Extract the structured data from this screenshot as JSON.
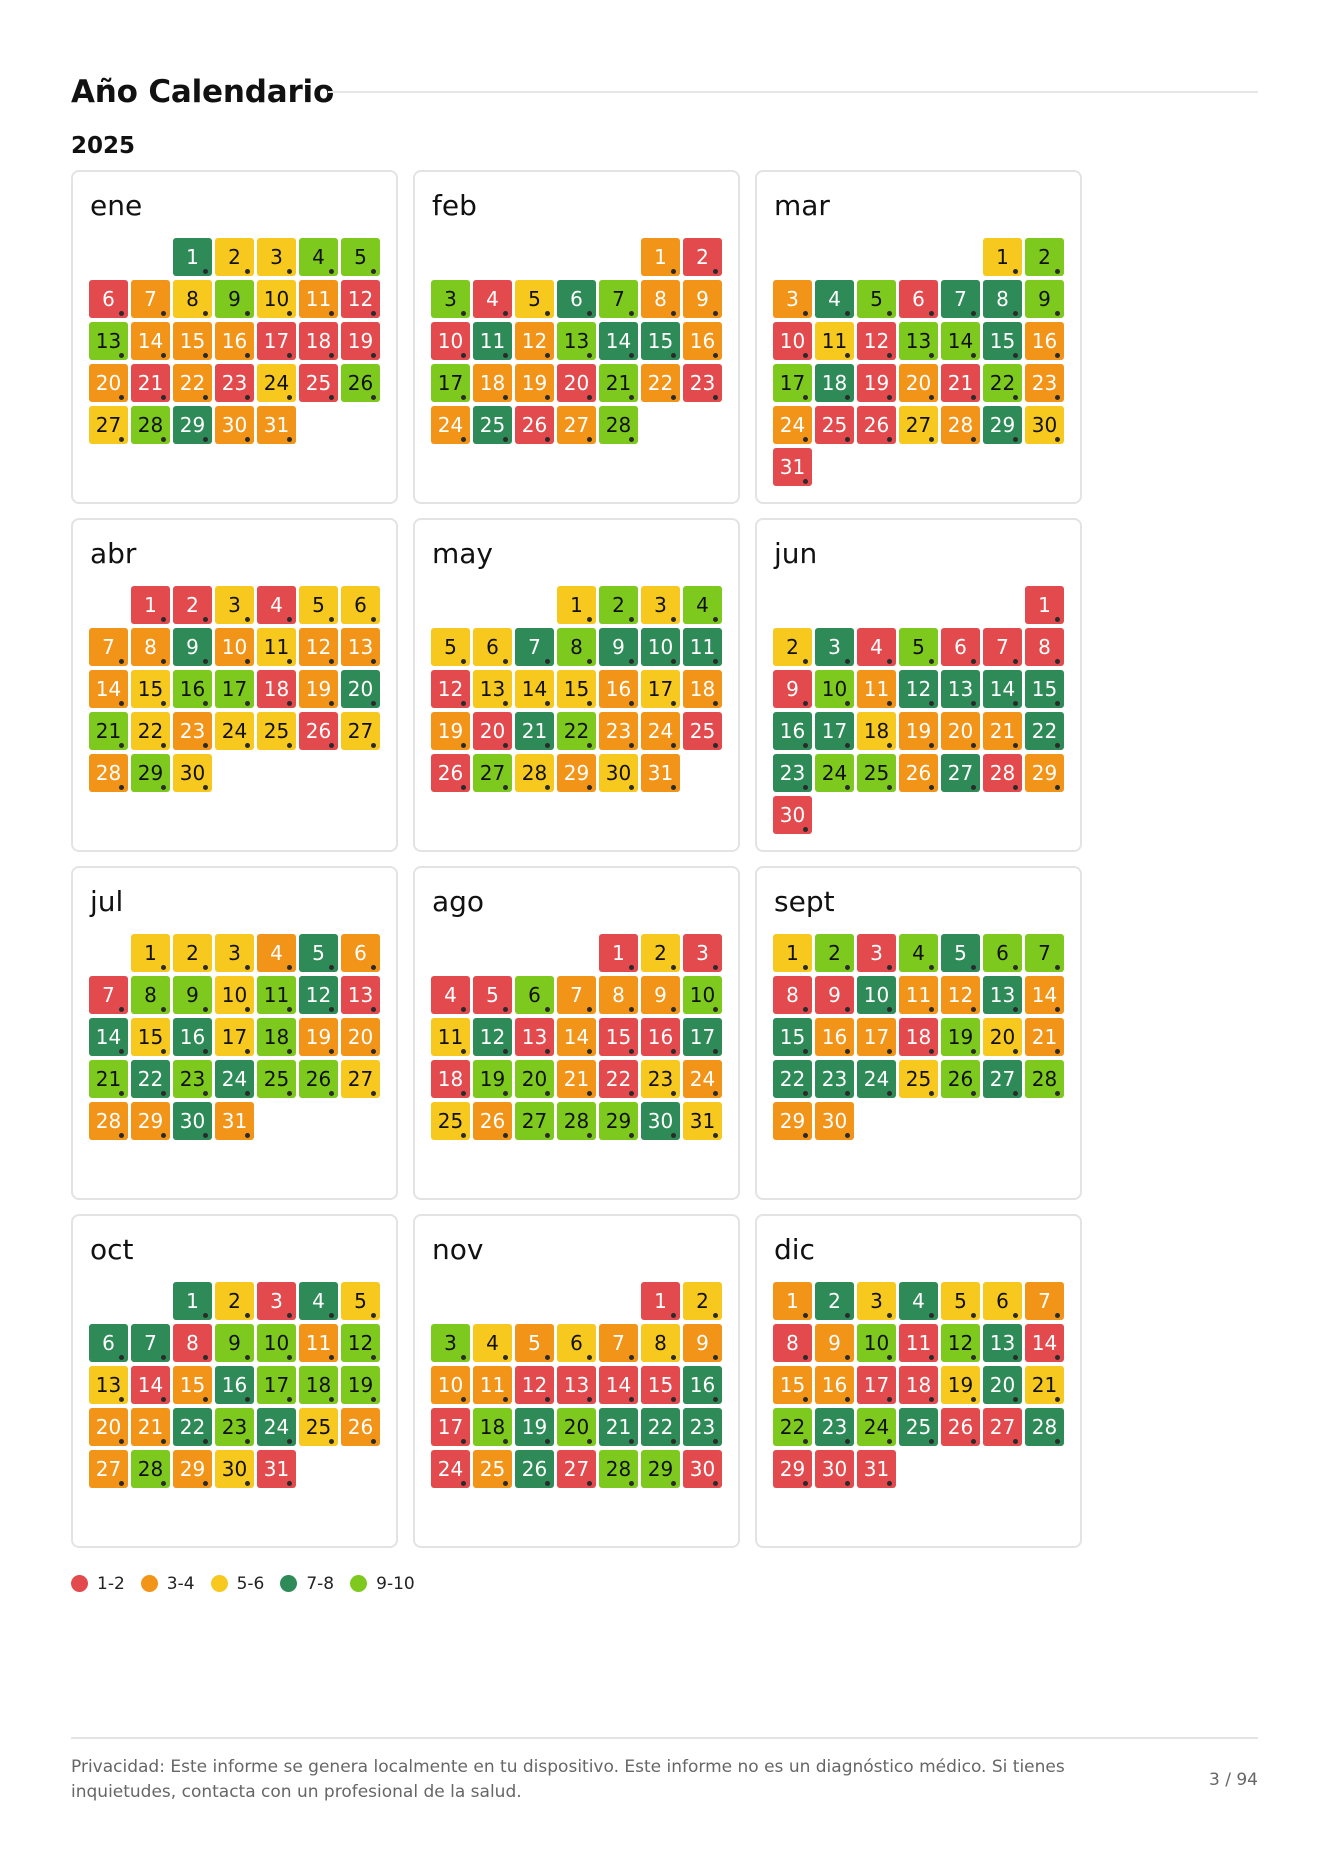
{
  "header": {
    "title": "Año Calendario",
    "year": "2025"
  },
  "colors": {
    "1-2": "#e24a4e",
    "3-4": "#f29418",
    "5-6": "#f7c91f",
    "7-8": "#2e8b57",
    "9-10": "#7ec91e"
  },
  "text_colors": {
    "1-2": "#ffffff",
    "3-4": "#ffffff",
    "5-6": "#111111",
    "7-8": "#ffffff",
    "9-10": "#111111"
  },
  "months": [
    {
      "name": "ene",
      "days": [
        "7-8",
        "5-6",
        "5-6",
        "9-10",
        "9-10",
        "1-2",
        "3-4",
        "5-6",
        "9-10",
        "5-6",
        "3-4",
        "1-2",
        "9-10",
        "3-4",
        "3-4",
        "3-4",
        "1-2",
        "1-2",
        "1-2",
        "3-4",
        "1-2",
        "3-4",
        "1-2",
        "5-6",
        "1-2",
        "9-10",
        "5-6",
        "9-10",
        "7-8",
        "3-4",
        "3-4"
      ]
    },
    {
      "name": "feb",
      "days": [
        "3-4",
        "1-2",
        "9-10",
        "1-2",
        "5-6",
        "7-8",
        "9-10",
        "3-4",
        "3-4",
        "1-2",
        "7-8",
        "3-4",
        "9-10",
        "7-8",
        "7-8",
        "3-4",
        "9-10",
        "3-4",
        "3-4",
        "1-2",
        "9-10",
        "3-4",
        "1-2",
        "3-4",
        "7-8",
        "1-2",
        "3-4",
        "9-10"
      ]
    },
    {
      "name": "mar",
      "days": [
        "5-6",
        "9-10",
        "3-4",
        "7-8",
        "9-10",
        "1-2",
        "7-8",
        "7-8",
        "9-10",
        "1-2",
        "5-6",
        "1-2",
        "9-10",
        "9-10",
        "7-8",
        "3-4",
        "9-10",
        "7-8",
        "1-2",
        "3-4",
        "1-2",
        "9-10",
        "3-4",
        "3-4",
        "1-2",
        "1-2",
        "5-6",
        "3-4",
        "7-8",
        "5-6",
        "1-2"
      ]
    },
    {
      "name": "abr",
      "days": [
        "1-2",
        "1-2",
        "5-6",
        "1-2",
        "5-6",
        "5-6",
        "3-4",
        "3-4",
        "7-8",
        "3-4",
        "5-6",
        "3-4",
        "3-4",
        "3-4",
        "5-6",
        "9-10",
        "9-10",
        "1-2",
        "3-4",
        "7-8",
        "9-10",
        "5-6",
        "3-4",
        "5-6",
        "5-6",
        "1-2",
        "5-6",
        "3-4",
        "9-10",
        "5-6"
      ]
    },
    {
      "name": "may",
      "days": [
        "5-6",
        "9-10",
        "5-6",
        "9-10",
        "5-6",
        "5-6",
        "7-8",
        "9-10",
        "7-8",
        "7-8",
        "7-8",
        "1-2",
        "5-6",
        "5-6",
        "5-6",
        "3-4",
        "5-6",
        "3-4",
        "3-4",
        "1-2",
        "7-8",
        "9-10",
        "3-4",
        "3-4",
        "1-2",
        "1-2",
        "9-10",
        "5-6",
        "3-4",
        "5-6",
        "3-4"
      ]
    },
    {
      "name": "jun",
      "days": [
        "1-2",
        "5-6",
        "7-8",
        "1-2",
        "9-10",
        "1-2",
        "1-2",
        "1-2",
        "1-2",
        "9-10",
        "3-4",
        "7-8",
        "7-8",
        "7-8",
        "7-8",
        "7-8",
        "7-8",
        "5-6",
        "3-4",
        "3-4",
        "3-4",
        "7-8",
        "7-8",
        "9-10",
        "9-10",
        "3-4",
        "7-8",
        "1-2",
        "3-4",
        "1-2"
      ]
    },
    {
      "name": "jul",
      "days": [
        "5-6",
        "5-6",
        "5-6",
        "3-4",
        "7-8",
        "3-4",
        "1-2",
        "9-10",
        "9-10",
        "5-6",
        "9-10",
        "7-8",
        "1-2",
        "7-8",
        "5-6",
        "7-8",
        "5-6",
        "9-10",
        "3-4",
        "3-4",
        "9-10",
        "7-8",
        "9-10",
        "7-8",
        "9-10",
        "9-10",
        "5-6",
        "3-4",
        "3-4",
        "7-8",
        "3-4"
      ]
    },
    {
      "name": "ago",
      "days": [
        "1-2",
        "5-6",
        "1-2",
        "1-2",
        "1-2",
        "9-10",
        "3-4",
        "3-4",
        "3-4",
        "9-10",
        "5-6",
        "7-8",
        "1-2",
        "3-4",
        "1-2",
        "1-2",
        "7-8",
        "1-2",
        "9-10",
        "9-10",
        "3-4",
        "1-2",
        "5-6",
        "3-4",
        "5-6",
        "3-4",
        "9-10",
        "9-10",
        "9-10",
        "7-8",
        "5-6"
      ]
    },
    {
      "name": "sept",
      "days": [
        "5-6",
        "9-10",
        "1-2",
        "9-10",
        "7-8",
        "9-10",
        "9-10",
        "1-2",
        "1-2",
        "7-8",
        "3-4",
        "3-4",
        "7-8",
        "3-4",
        "7-8",
        "3-4",
        "3-4",
        "1-2",
        "9-10",
        "5-6",
        "3-4",
        "7-8",
        "7-8",
        "7-8",
        "5-6",
        "9-10",
        "7-8",
        "9-10",
        "3-4",
        "3-4"
      ]
    },
    {
      "name": "oct",
      "days": [
        "7-8",
        "5-6",
        "1-2",
        "7-8",
        "5-6",
        "7-8",
        "7-8",
        "1-2",
        "9-10",
        "9-10",
        "3-4",
        "9-10",
        "5-6",
        "1-2",
        "3-4",
        "7-8",
        "9-10",
        "9-10",
        "9-10",
        "3-4",
        "3-4",
        "7-8",
        "9-10",
        "7-8",
        "5-6",
        "3-4",
        "3-4",
        "9-10",
        "3-4",
        "5-6",
        "1-2"
      ]
    },
    {
      "name": "nov",
      "days": [
        "1-2",
        "5-6",
        "9-10",
        "5-6",
        "3-4",
        "5-6",
        "3-4",
        "5-6",
        "3-4",
        "3-4",
        "3-4",
        "1-2",
        "1-2",
        "1-2",
        "1-2",
        "7-8",
        "1-2",
        "9-10",
        "7-8",
        "9-10",
        "7-8",
        "7-8",
        "7-8",
        "1-2",
        "3-4",
        "7-8",
        "1-2",
        "9-10",
        "9-10",
        "1-2"
      ]
    },
    {
      "name": "dic",
      "days": [
        "3-4",
        "7-8",
        "5-6",
        "7-8",
        "5-6",
        "5-6",
        "3-4",
        "1-2",
        "3-4",
        "9-10",
        "1-2",
        "9-10",
        "7-8",
        "1-2",
        "3-4",
        "3-4",
        "1-2",
        "1-2",
        "5-6",
        "7-8",
        "5-6",
        "9-10",
        "7-8",
        "9-10",
        "7-8",
        "1-2",
        "1-2",
        "7-8",
        "1-2",
        "1-2",
        "1-2"
      ]
    }
  ],
  "legend": [
    {
      "key": "1-2",
      "label": "1-2",
      "color": "#e24a4e"
    },
    {
      "key": "3-4",
      "label": "3-4",
      "color": "#f29418"
    },
    {
      "key": "5-6",
      "label": "5-6",
      "color": "#f7c91f"
    },
    {
      "key": "7-8",
      "label": "7-8",
      "color": "#2e8b57"
    },
    {
      "key": "9-10",
      "label": "9-10",
      "color": "#7ec91e"
    }
  ],
  "footer": {
    "privacy": "Privacidad: Este informe se genera localmente en tu dispositivo. Este informe no es un diagnóstico médico. Si tienes inquietudes, contacta con un profesional de la salud.",
    "page": "3 / 94"
  }
}
